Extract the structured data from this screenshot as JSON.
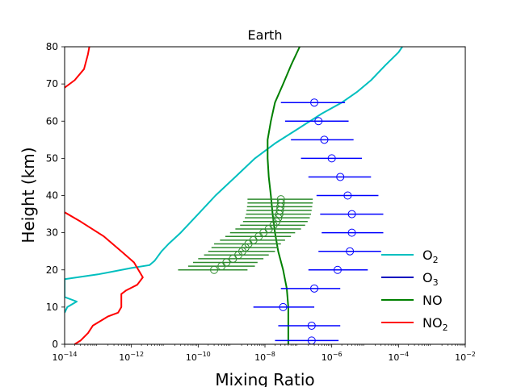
{
  "chart_data": {
    "type": "line",
    "title": "Earth",
    "xlabel": "Mixing Ratio",
    "ylabel": "Height (km)",
    "xscale": "log",
    "xlim": [
      1e-14,
      0.01
    ],
    "ylim": [
      0,
      80
    ],
    "x_ticks": [
      {
        "value": 1e-14,
        "base": "10",
        "exp": "−14"
      },
      {
        "value": 1e-12,
        "base": "10",
        "exp": "−12"
      },
      {
        "value": 1e-10,
        "base": "10",
        "exp": "−10"
      },
      {
        "value": 1e-08,
        "base": "10",
        "exp": "−8"
      },
      {
        "value": 1e-06,
        "base": "10",
        "exp": "−6"
      },
      {
        "value": 0.0001,
        "base": "10",
        "exp": "−4"
      },
      {
        "value": 0.01,
        "base": "10",
        "exp": "−2"
      }
    ],
    "y_ticks": [
      {
        "value": 0,
        "label": "0"
      },
      {
        "value": 10,
        "label": "10"
      },
      {
        "value": 20,
        "label": "20"
      },
      {
        "value": 30,
        "label": "30"
      },
      {
        "value": 40,
        "label": "40"
      },
      {
        "value": 50,
        "label": "50"
      },
      {
        "value": 60,
        "label": "60"
      },
      {
        "value": 70,
        "label": "70"
      },
      {
        "value": 80,
        "label": "80"
      }
    ],
    "legend_position": "lower-right",
    "legend": [
      {
        "base": "O",
        "sub": "2",
        "color": "#00bfbf"
      },
      {
        "base": "O",
        "sub": "3",
        "color": "#0000bf"
      },
      {
        "base": "NO",
        "sub": "",
        "color": "#008000"
      },
      {
        "base": "NO",
        "sub": "2",
        "color": "#ff0000"
      }
    ],
    "series": [
      {
        "color": "#00bfbf",
        "points": [
          [
            1e-14,
            8.5
          ],
          [
            1.2e-14,
            10
          ],
          [
            2.3e-14,
            11.5
          ],
          [
            1e-14,
            12.7
          ],
          [
            1e-14,
            17.5
          ],
          [
            1e-13,
            18.8
          ],
          [
            1e-12,
            20.5
          ],
          [
            3.5e-12,
            21.3
          ],
          [
            5e-12,
            22.5
          ],
          [
            8e-12,
            25
          ],
          [
            1.3e-11,
            27
          ],
          [
            3e-11,
            30
          ],
          [
            1e-10,
            35
          ],
          [
            3.3e-10,
            40
          ],
          [
            1.3e-09,
            45
          ],
          [
            5e-09,
            50
          ],
          [
            2e-08,
            54
          ],
          [
            1e-07,
            58
          ],
          [
            5e-07,
            62
          ],
          [
            2e-06,
            65
          ],
          [
            6e-06,
            68
          ],
          [
            1.5e-05,
            71
          ],
          [
            4e-05,
            75
          ],
          [
            0.0001,
            78.5
          ],
          [
            0.00013,
            80
          ]
        ]
      },
      {
        "color": "#008000",
        "points": [
          [
            5e-08,
            0
          ],
          [
            5e-08,
            10
          ],
          [
            4.5e-08,
            15
          ],
          [
            3.5e-08,
            20
          ],
          [
            2.5e-08,
            25
          ],
          [
            2e-08,
            30
          ],
          [
            1.7e-08,
            35
          ],
          [
            1.5e-08,
            40
          ],
          [
            1.3e-08,
            45
          ],
          [
            1.2e-08,
            50
          ],
          [
            1.2e-08,
            55
          ],
          [
            1.5e-08,
            60
          ],
          [
            2e-08,
            65
          ],
          [
            3.5e-08,
            70
          ],
          [
            6e-08,
            75
          ],
          [
            1.1e-07,
            80
          ]
        ]
      },
      {
        "color": "#ff0000",
        "points": [
          [
            1e-14,
            35.5
          ],
          [
            3e-14,
            33
          ],
          [
            1.5e-13,
            29
          ],
          [
            5e-13,
            25
          ],
          [
            1.2e-12,
            22
          ],
          [
            2.2e-12,
            18
          ],
          [
            1.5e-12,
            16
          ],
          [
            7e-13,
            14.5
          ],
          [
            5e-13,
            13.5
          ],
          [
            5e-13,
            10
          ],
          [
            4e-13,
            8.5
          ],
          [
            2e-13,
            7.5
          ],
          [
            7e-14,
            5
          ],
          [
            5e-14,
            3
          ],
          [
            3e-14,
            1
          ],
          [
            2e-14,
            0
          ]
        ]
      },
      {
        "color": "#ff0000",
        "points": [
          [
            1e-14,
            69
          ],
          [
            2e-14,
            71
          ],
          [
            3.8e-14,
            74
          ],
          [
            5e-14,
            78
          ],
          [
            5.5e-14,
            80
          ]
        ]
      }
    ],
    "errorbars": [
      {
        "color": "#0000ff",
        "marker": "open-circle",
        "points": [
          {
            "y": 1,
            "x": 2.5e-07,
            "xmin": 2e-08,
            "xmax": 1.6e-06
          },
          {
            "y": 5,
            "x": 2.5e-07,
            "xmin": 2.5e-08,
            "xmax": 1.8e-06
          },
          {
            "y": 10,
            "x": 3.5e-08,
            "xmin": 4.5e-09,
            "xmax": 3e-07
          },
          {
            "y": 15,
            "x": 3e-07,
            "xmin": 3e-08,
            "xmax": 1.8e-06
          },
          {
            "y": 20,
            "x": 1.5e-06,
            "xmin": 2e-07,
            "xmax": 1.2e-05
          },
          {
            "y": 25,
            "x": 3.5e-06,
            "xmin": 4e-07,
            "xmax": 3e-05
          },
          {
            "y": 30,
            "x": 4e-06,
            "xmin": 5e-07,
            "xmax": 3.5e-05
          },
          {
            "y": 35,
            "x": 4e-06,
            "xmin": 4.5e-07,
            "xmax": 3.5e-05
          },
          {
            "y": 40,
            "x": 3e-06,
            "xmin": 3.5e-07,
            "xmax": 2.5e-05
          },
          {
            "y": 45,
            "x": 1.8e-06,
            "xmin": 2e-07,
            "xmax": 1.5e-05
          },
          {
            "y": 50,
            "x": 1e-06,
            "xmin": 1.2e-07,
            "xmax": 8e-06
          },
          {
            "y": 55,
            "x": 6e-07,
            "xmin": 6e-08,
            "xmax": 4.5e-06
          },
          {
            "y": 60,
            "x": 4e-07,
            "xmin": 4e-08,
            "xmax": 3.2e-06
          },
          {
            "y": 65,
            "x": 3e-07,
            "xmin": 3e-08,
            "xmax": 2.5e-06
          }
        ]
      },
      {
        "color": "#2e8b2e",
        "marker": "open-circle",
        "points": [
          {
            "y": 20,
            "x": 3e-10,
            "xmin": 2.5e-11,
            "xmax": 3e-09
          },
          {
            "y": 21,
            "x": 5e-10,
            "xmin": 5e-11,
            "xmax": 5e-09
          },
          {
            "y": 22,
            "x": 7e-10,
            "xmin": 7e-11,
            "xmax": 6e-09
          },
          {
            "y": 23,
            "x": 1.1e-09,
            "xmin": 1e-10,
            "xmax": 9e-09
          },
          {
            "y": 24,
            "x": 1.6e-09,
            "xmin": 1.5e-10,
            "xmax": 1.3e-08
          },
          {
            "y": 25,
            "x": 2.1e-09,
            "xmin": 2e-10,
            "xmax": 2e-08
          },
          {
            "y": 26,
            "x": 2.6e-09,
            "xmin": 2.5e-10,
            "xmax": 2.5e-08
          },
          {
            "y": 27,
            "x": 3.2e-09,
            "xmin": 3e-10,
            "xmax": 3e-08
          },
          {
            "y": 28,
            "x": 4.5e-09,
            "xmin": 4.5e-10,
            "xmax": 4e-08
          },
          {
            "y": 29,
            "x": 6.5e-09,
            "xmin": 6.5e-10,
            "xmax": 6e-08
          },
          {
            "y": 30,
            "x": 9e-09,
            "xmin": 9e-10,
            "xmax": 8e-08
          },
          {
            "y": 31,
            "x": 1.3e-08,
            "xmin": 1.3e-09,
            "xmax": 1.2e-07
          },
          {
            "y": 32,
            "x": 1.8e-08,
            "xmin": 1.8e-09,
            "xmax": 1.6e-07
          },
          {
            "y": 33,
            "x": 2.2e-08,
            "xmin": 2.2e-09,
            "xmax": 1.9e-07
          },
          {
            "y": 34,
            "x": 2.5e-08,
            "xmin": 2.5e-09,
            "xmax": 2.2e-07
          },
          {
            "y": 35,
            "x": 2.7e-08,
            "xmin": 2.7e-09,
            "xmax": 2.4e-07
          },
          {
            "y": 36,
            "x": 2.8e-08,
            "xmin": 2.8e-09,
            "xmax": 2.5e-07
          },
          {
            "y": 37,
            "x": 2.9e-08,
            "xmin": 2.9e-09,
            "xmax": 2.6e-07
          },
          {
            "y": 38,
            "x": 3e-08,
            "xmin": 3e-09,
            "xmax": 2.7e-07
          },
          {
            "y": 39,
            "x": 3e-08,
            "xmin": 3e-09,
            "xmax": 2.7e-07
          }
        ]
      }
    ]
  }
}
